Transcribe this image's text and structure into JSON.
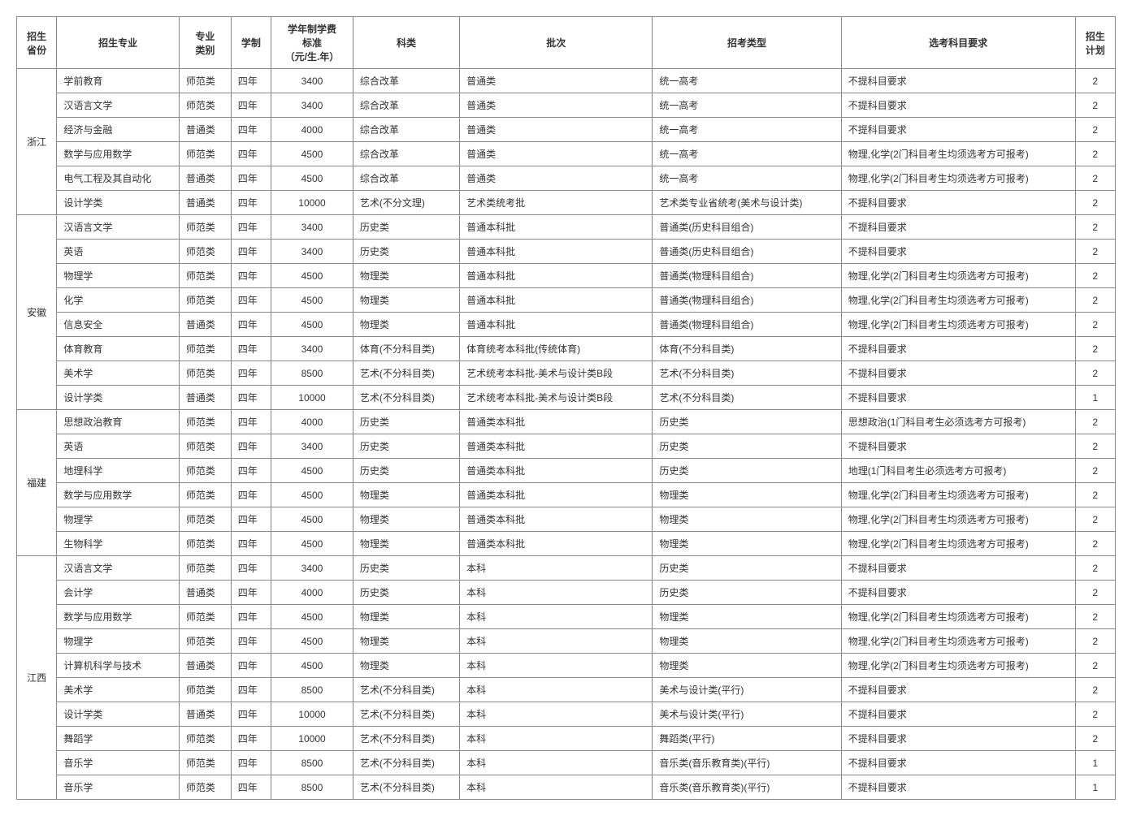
{
  "headers": {
    "province": "招生\n省份",
    "major": "招生专业",
    "category": "专业\n类别",
    "duration": "学制",
    "fee": "学年制学费\n标准\n（元/生.年）",
    "subject_class": "科类",
    "batch": "批次",
    "admission_type": "招考类型",
    "subject_req": "选考科目要求",
    "plan": "招生\n计划"
  },
  "provinces": [
    {
      "name": "浙江",
      "rows": [
        {
          "major": "学前教育",
          "category": "师范类",
          "duration": "四年",
          "fee": "3400",
          "subject_class": "综合改革",
          "batch": "普通类",
          "admission_type": "统一高考",
          "subject_req": "不提科目要求",
          "plan": "2"
        },
        {
          "major": "汉语言文学",
          "category": "师范类",
          "duration": "四年",
          "fee": "3400",
          "subject_class": "综合改革",
          "batch": "普通类",
          "admission_type": "统一高考",
          "subject_req": "不提科目要求",
          "plan": "2"
        },
        {
          "major": "经济与金融",
          "category": "普通类",
          "duration": "四年",
          "fee": "4000",
          "subject_class": "综合改革",
          "batch": "普通类",
          "admission_type": "统一高考",
          "subject_req": "不提科目要求",
          "plan": "2"
        },
        {
          "major": "数学与应用数学",
          "category": "师范类",
          "duration": "四年",
          "fee": "4500",
          "subject_class": "综合改革",
          "batch": "普通类",
          "admission_type": "统一高考",
          "subject_req": "物理,化学(2门科目考生均须选考方可报考)",
          "plan": "2"
        },
        {
          "major": "电气工程及其自动化",
          "category": "普通类",
          "duration": "四年",
          "fee": "4500",
          "subject_class": "综合改革",
          "batch": "普通类",
          "admission_type": "统一高考",
          "subject_req": "物理,化学(2门科目考生均须选考方可报考)",
          "plan": "2"
        },
        {
          "major": "设计学类",
          "category": "普通类",
          "duration": "四年",
          "fee": "10000",
          "subject_class": "艺术(不分文理)",
          "batch": "艺术类统考批",
          "admission_type": "艺术类专业省统考(美术与设计类)",
          "subject_req": "不提科目要求",
          "plan": "2"
        }
      ]
    },
    {
      "name": "安徽",
      "rows": [
        {
          "major": "汉语言文学",
          "category": "师范类",
          "duration": "四年",
          "fee": "3400",
          "subject_class": "历史类",
          "batch": "普通本科批",
          "admission_type": "普通类(历史科目组合)",
          "subject_req": "不提科目要求",
          "plan": "2"
        },
        {
          "major": "英语",
          "category": "师范类",
          "duration": "四年",
          "fee": "3400",
          "subject_class": "历史类",
          "batch": "普通本科批",
          "admission_type": "普通类(历史科目组合)",
          "subject_req": "不提科目要求",
          "plan": "2"
        },
        {
          "major": "物理学",
          "category": "师范类",
          "duration": "四年",
          "fee": "4500",
          "subject_class": "物理类",
          "batch": "普通本科批",
          "admission_type": "普通类(物理科目组合)",
          "subject_req": "物理,化学(2门科目考生均须选考方可报考)",
          "plan": "2"
        },
        {
          "major": "化学",
          "category": "师范类",
          "duration": "四年",
          "fee": "4500",
          "subject_class": "物理类",
          "batch": "普通本科批",
          "admission_type": "普通类(物理科目组合)",
          "subject_req": "物理,化学(2门科目考生均须选考方可报考)",
          "plan": "2"
        },
        {
          "major": "信息安全",
          "category": "普通类",
          "duration": "四年",
          "fee": "4500",
          "subject_class": "物理类",
          "batch": "普通本科批",
          "admission_type": "普通类(物理科目组合)",
          "subject_req": "物理,化学(2门科目考生均须选考方可报考)",
          "plan": "2"
        },
        {
          "major": "体育教育",
          "category": "师范类",
          "duration": "四年",
          "fee": "3400",
          "subject_class": "体育(不分科目类)",
          "batch": "体育统考本科批(传统体育)",
          "admission_type": "体育(不分科目类)",
          "subject_req": "不提科目要求",
          "plan": "2"
        },
        {
          "major": "美术学",
          "category": "师范类",
          "duration": "四年",
          "fee": "8500",
          "subject_class": "艺术(不分科目类)",
          "batch": "艺术统考本科批-美术与设计类B段",
          "admission_type": "艺术(不分科目类)",
          "subject_req": "不提科目要求",
          "plan": "2"
        },
        {
          "major": "设计学类",
          "category": "普通类",
          "duration": "四年",
          "fee": "10000",
          "subject_class": "艺术(不分科目类)",
          "batch": "艺术统考本科批-美术与设计类B段",
          "admission_type": "艺术(不分科目类)",
          "subject_req": "不提科目要求",
          "plan": "1"
        }
      ]
    },
    {
      "name": "福建",
      "rows": [
        {
          "major": "思想政治教育",
          "category": "师范类",
          "duration": "四年",
          "fee": "4000",
          "subject_class": "历史类",
          "batch": "普通类本科批",
          "admission_type": "历史类",
          "subject_req": "思想政治(1门科目考生必须选考方可报考)",
          "plan": "2"
        },
        {
          "major": "英语",
          "category": "师范类",
          "duration": "四年",
          "fee": "3400",
          "subject_class": "历史类",
          "batch": "普通类本科批",
          "admission_type": "历史类",
          "subject_req": "不提科目要求",
          "plan": "2"
        },
        {
          "major": "地理科学",
          "category": "师范类",
          "duration": "四年",
          "fee": "4500",
          "subject_class": "历史类",
          "batch": "普通类本科批",
          "admission_type": "历史类",
          "subject_req": "地理(1门科目考生必须选考方可报考)",
          "plan": "2"
        },
        {
          "major": "数学与应用数学",
          "category": "师范类",
          "duration": "四年",
          "fee": "4500",
          "subject_class": "物理类",
          "batch": "普通类本科批",
          "admission_type": "物理类",
          "subject_req": "物理,化学(2门科目考生均须选考方可报考)",
          "plan": "2"
        },
        {
          "major": "物理学",
          "category": "师范类",
          "duration": "四年",
          "fee": "4500",
          "subject_class": "物理类",
          "batch": "普通类本科批",
          "admission_type": "物理类",
          "subject_req": "物理,化学(2门科目考生均须选考方可报考)",
          "plan": "2"
        },
        {
          "major": "生物科学",
          "category": "师范类",
          "duration": "四年",
          "fee": "4500",
          "subject_class": "物理类",
          "batch": "普通类本科批",
          "admission_type": "物理类",
          "subject_req": "物理,化学(2门科目考生均须选考方可报考)",
          "plan": "2"
        }
      ]
    },
    {
      "name": "江西",
      "rows": [
        {
          "major": "汉语言文学",
          "category": "师范类",
          "duration": "四年",
          "fee": "3400",
          "subject_class": "历史类",
          "batch": "本科",
          "admission_type": "历史类",
          "subject_req": "不提科目要求",
          "plan": "2"
        },
        {
          "major": "会计学",
          "category": "普通类",
          "duration": "四年",
          "fee": "4000",
          "subject_class": "历史类",
          "batch": "本科",
          "admission_type": "历史类",
          "subject_req": "不提科目要求",
          "plan": "2"
        },
        {
          "major": "数学与应用数学",
          "category": "师范类",
          "duration": "四年",
          "fee": "4500",
          "subject_class": "物理类",
          "batch": "本科",
          "admission_type": "物理类",
          "subject_req": "物理,化学(2门科目考生均须选考方可报考)",
          "plan": "2"
        },
        {
          "major": "物理学",
          "category": "师范类",
          "duration": "四年",
          "fee": "4500",
          "subject_class": "物理类",
          "batch": "本科",
          "admission_type": "物理类",
          "subject_req": "物理,化学(2门科目考生均须选考方可报考)",
          "plan": "2"
        },
        {
          "major": "计算机科学与技术",
          "category": "普通类",
          "duration": "四年",
          "fee": "4500",
          "subject_class": "物理类",
          "batch": "本科",
          "admission_type": "物理类",
          "subject_req": "物理,化学(2门科目考生均须选考方可报考)",
          "plan": "2"
        },
        {
          "major": "美术学",
          "category": "师范类",
          "duration": "四年",
          "fee": "8500",
          "subject_class": "艺术(不分科目类)",
          "batch": "本科",
          "admission_type": "美术与设计类(平行)",
          "subject_req": "不提科目要求",
          "plan": "2"
        },
        {
          "major": "设计学类",
          "category": "普通类",
          "duration": "四年",
          "fee": "10000",
          "subject_class": "艺术(不分科目类)",
          "batch": "本科",
          "admission_type": "美术与设计类(平行)",
          "subject_req": "不提科目要求",
          "plan": "2"
        },
        {
          "major": "舞蹈学",
          "category": "师范类",
          "duration": "四年",
          "fee": "10000",
          "subject_class": "艺术(不分科目类)",
          "batch": "本科",
          "admission_type": "舞蹈类(平行)",
          "subject_req": "不提科目要求",
          "plan": "2"
        },
        {
          "major": "音乐学",
          "category": "师范类",
          "duration": "四年",
          "fee": "8500",
          "subject_class": "艺术(不分科目类)",
          "batch": "本科",
          "admission_type": "音乐类(音乐教育类)(平行)",
          "subject_req": "不提科目要求",
          "plan": "1"
        },
        {
          "major": "音乐学",
          "category": "师范类",
          "duration": "四年",
          "fee": "8500",
          "subject_class": "艺术(不分科目类)",
          "batch": "本科",
          "admission_type": "音乐类(音乐教育类)(平行)",
          "subject_req": "不提科目要求",
          "plan": "1"
        }
      ]
    }
  ]
}
